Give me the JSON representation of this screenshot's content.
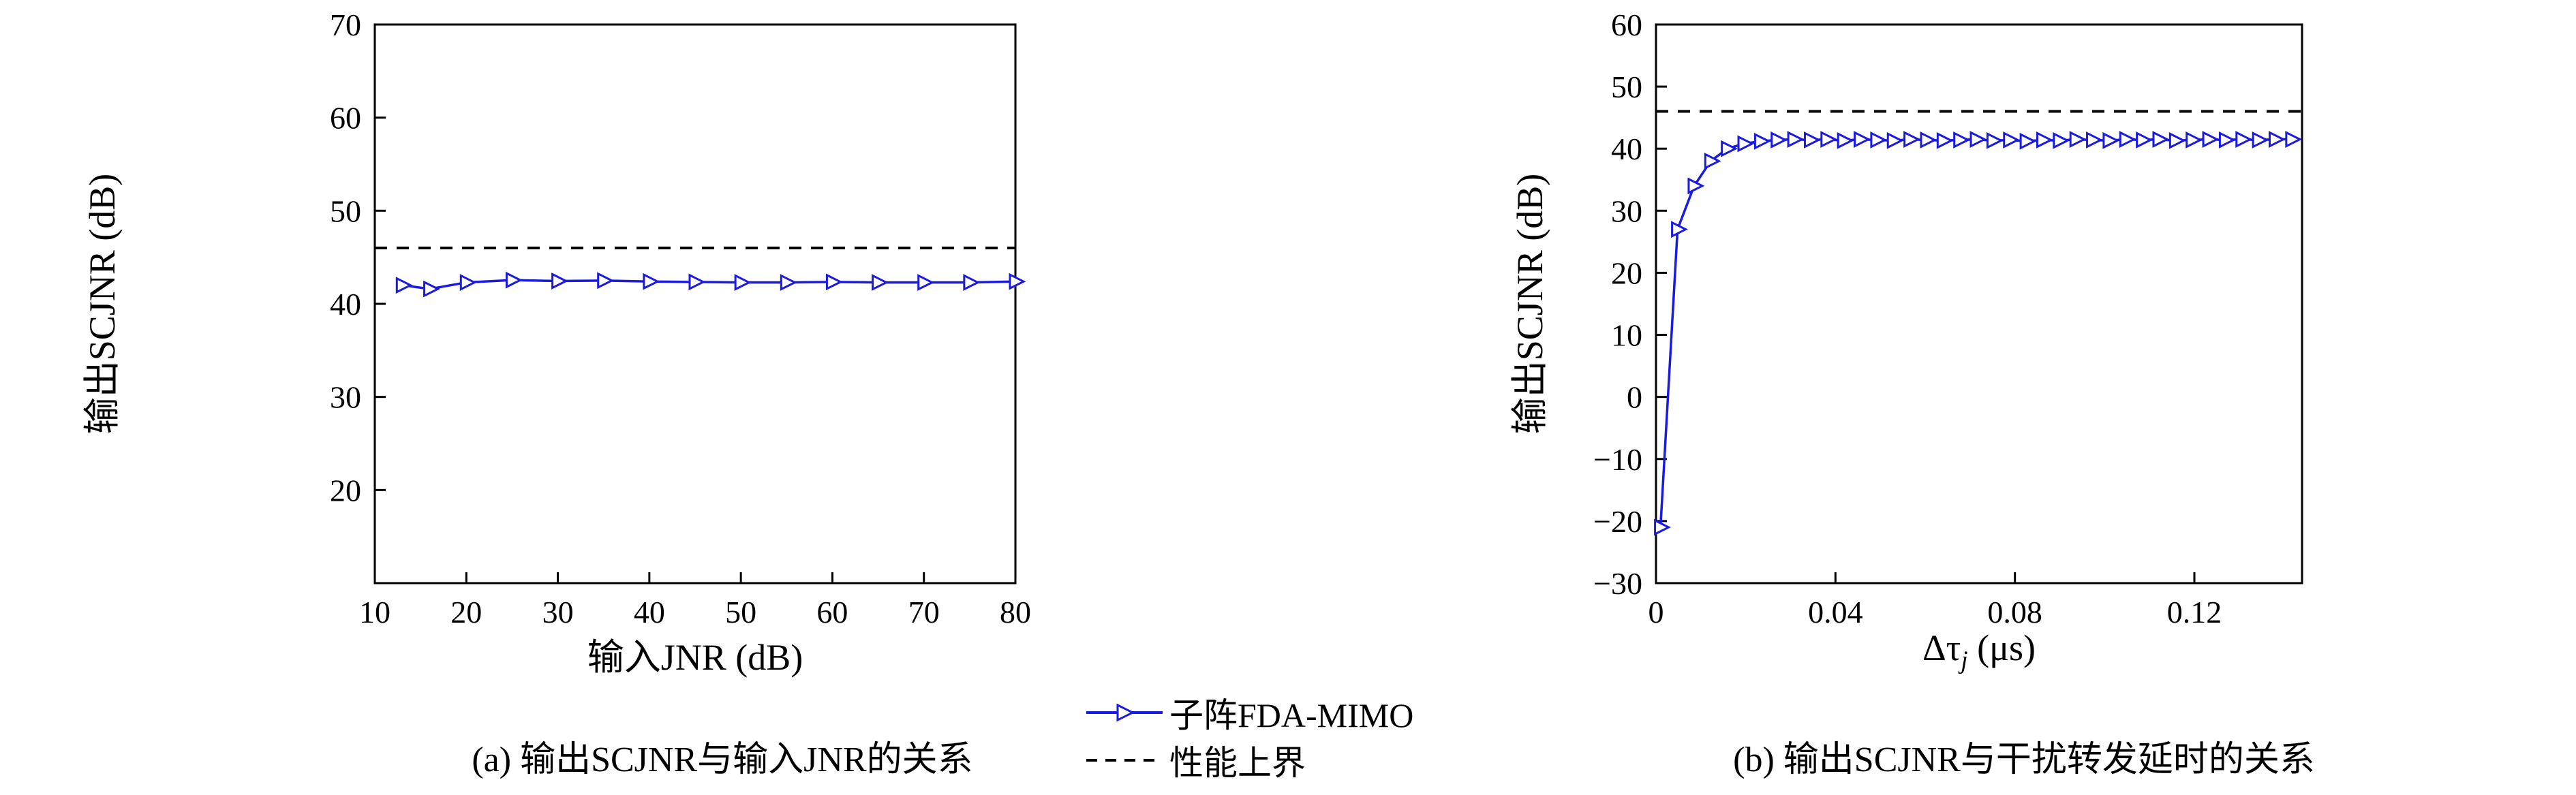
{
  "page": {
    "background": "#ffffff"
  },
  "colors": {
    "series": "#1a1ae0",
    "bound": "#000000",
    "frame": "#000000"
  },
  "legend": {
    "items": [
      {
        "label": "子阵FDA-MIMO",
        "style": "marker-line"
      },
      {
        "label": "性能上界",
        "style": "dashed"
      }
    ]
  },
  "chart_data": [
    {
      "type": "line",
      "caption": "(a) 输出SCJNR与输入JNR的关系",
      "xlabel": "输入JNR (dB)",
      "ylabel": "输出SCJNR (dB)",
      "xlim": [
        10,
        80
      ],
      "ylim": [
        10,
        70
      ],
      "xticks": [
        10,
        20,
        30,
        40,
        50,
        60,
        70,
        80
      ],
      "yticks": [
        20,
        30,
        40,
        50,
        60,
        70
      ],
      "grid": false,
      "bound_value": 46,
      "bound_name": "性能上界",
      "series": [
        {
          "name": "子阵FDA-MIMO",
          "x": [
            13,
            16,
            20,
            25,
            30,
            35,
            40,
            45,
            50,
            55,
            60,
            65,
            70,
            75,
            80
          ],
          "y": [
            42.0,
            41.6,
            42.3,
            42.55,
            42.45,
            42.5,
            42.4,
            42.35,
            42.3,
            42.3,
            42.35,
            42.3,
            42.3,
            42.3,
            42.4
          ]
        }
      ]
    },
    {
      "type": "line",
      "caption": "(b) 输出SCJNR与干扰转发延时的关系",
      "xlabel_parts": {
        "pre": "Δτ",
        "sub": "j",
        "post": " (μs)"
      },
      "ylabel": "输出SCJNR (dB)",
      "xlim": [
        0,
        0.144
      ],
      "ylim": [
        -30,
        60
      ],
      "xticks": [
        0,
        0.04,
        0.08,
        0.12
      ],
      "yticks": [
        -30,
        -20,
        -10,
        0,
        10,
        20,
        30,
        40,
        50,
        60
      ],
      "grid": false,
      "bound_value": 46,
      "bound_name": "性能上界",
      "series": [
        {
          "name": "子阵FDA-MIMO",
          "x": [
            0.001,
            0.0048,
            0.0085,
            0.0122,
            0.0159,
            0.0196,
            0.0233,
            0.027,
            0.0307,
            0.0344,
            0.0381,
            0.0418,
            0.0455,
            0.0492,
            0.0529,
            0.0566,
            0.0603,
            0.064,
            0.0677,
            0.0714,
            0.0751,
            0.0788,
            0.0825,
            0.0862,
            0.0899,
            0.0936,
            0.0973,
            0.101,
            0.1047,
            0.1084,
            0.1121,
            0.1158,
            0.1195,
            0.1232,
            0.1269,
            0.1306,
            0.1343,
            0.138,
            0.1417
          ],
          "y": [
            -21,
            27,
            34,
            38,
            40,
            40.8,
            41.2,
            41.4,
            41.5,
            41.4,
            41.5,
            41.3,
            41.5,
            41.4,
            41.3,
            41.5,
            41.4,
            41.3,
            41.4,
            41.5,
            41.3,
            41.4,
            41.2,
            41.4,
            41.3,
            41.5,
            41.4,
            41.3,
            41.5,
            41.4,
            41.5,
            41.3,
            41.4,
            41.5,
            41.4,
            41.5,
            41.4,
            41.5,
            41.5
          ]
        }
      ]
    }
  ]
}
